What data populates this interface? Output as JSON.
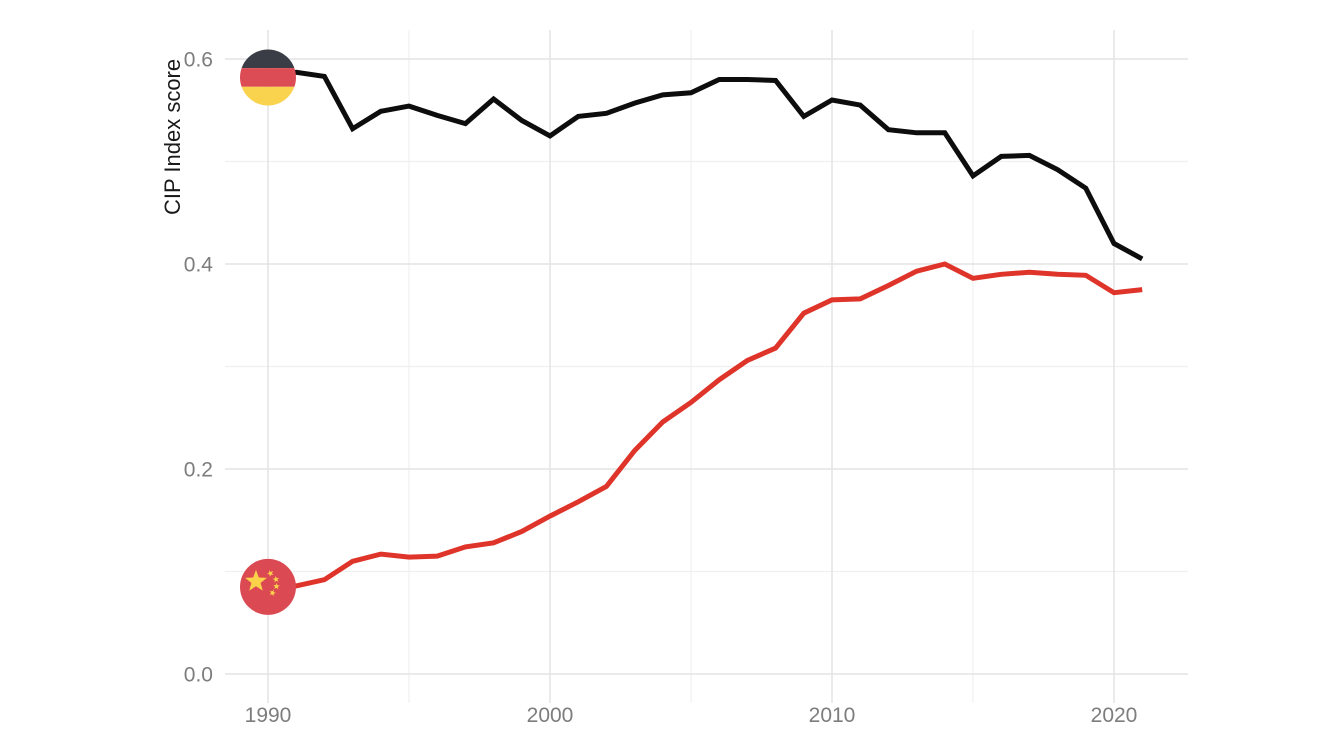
{
  "figure": {
    "background": "#ffffff"
  },
  "chart_data": {
    "type": "line",
    "title": "",
    "xlabel": "",
    "ylabel": "CIP Index score",
    "x": [
      1990,
      1991,
      1992,
      1993,
      1994,
      1995,
      1996,
      1997,
      1998,
      1999,
      2000,
      2001,
      2002,
      2003,
      2004,
      2005,
      2006,
      2007,
      2008,
      2009,
      2010,
      2011,
      2012,
      2013,
      2014,
      2015,
      2016,
      2017,
      2018,
      2019,
      2020,
      2021
    ],
    "series": [
      {
        "name": "Germany",
        "color": "#0d0d0d",
        "flag_icon": "germany-flag-icon",
        "values": [
          0.582,
          0.587,
          0.583,
          0.532,
          0.549,
          0.554,
          0.545,
          0.537,
          0.561,
          0.54,
          0.525,
          0.544,
          0.547,
          0.557,
          0.565,
          0.567,
          0.58,
          0.58,
          0.579,
          0.544,
          0.56,
          0.555,
          0.531,
          0.528,
          0.528,
          0.486,
          0.505,
          0.506,
          0.492,
          0.474,
          0.42,
          0.405
        ]
      },
      {
        "name": "China",
        "color": "#df342a",
        "flag_icon": "china-flag-icon",
        "values": [
          0.085,
          0.086,
          0.092,
          0.11,
          0.117,
          0.114,
          0.115,
          0.124,
          0.128,
          0.139,
          0.154,
          0.168,
          0.183,
          0.218,
          0.246,
          0.265,
          0.287,
          0.306,
          0.318,
          0.352,
          0.365,
          0.366,
          0.379,
          0.393,
          0.4,
          0.386,
          0.39,
          0.392,
          0.39,
          0.389,
          0.372,
          0.375
        ]
      }
    ],
    "x_ticks": {
      "major": [
        1990,
        2000,
        2010,
        2020
      ],
      "major_labels": [
        "1990",
        "2000",
        "2010",
        "2020"
      ],
      "minor": [
        1995,
        2005,
        2015
      ]
    },
    "y_ticks": {
      "major": [
        0.0,
        0.2,
        0.4,
        0.6
      ],
      "major_labels": [
        "0.0",
        "0.2",
        "0.4",
        "0.6"
      ],
      "minor": [
        0.1,
        0.3,
        0.5
      ]
    },
    "xlim": [
      1988.5,
      2022.6
    ],
    "ylim": [
      -0.028,
      0.628
    ],
    "grid": "major and minor gridlines, light gray on white, no panel border",
    "legend": "none (circular flag icons mark the start of each series)"
  },
  "styles": {
    "grid_major_color": "#e3e3e3",
    "grid_minor_color": "#f0f0f0",
    "tick_label_color": "#7d7d7d",
    "axis_title_color": "#1a1a1a",
    "line_width": 5
  },
  "flags": {
    "germany": {
      "band_top": "#3a3d46",
      "band_middle": "#db4c55",
      "band_bottom": "#f9d34e"
    },
    "china": {
      "circle": "#db4a52",
      "stars": "#fbd34b"
    }
  }
}
